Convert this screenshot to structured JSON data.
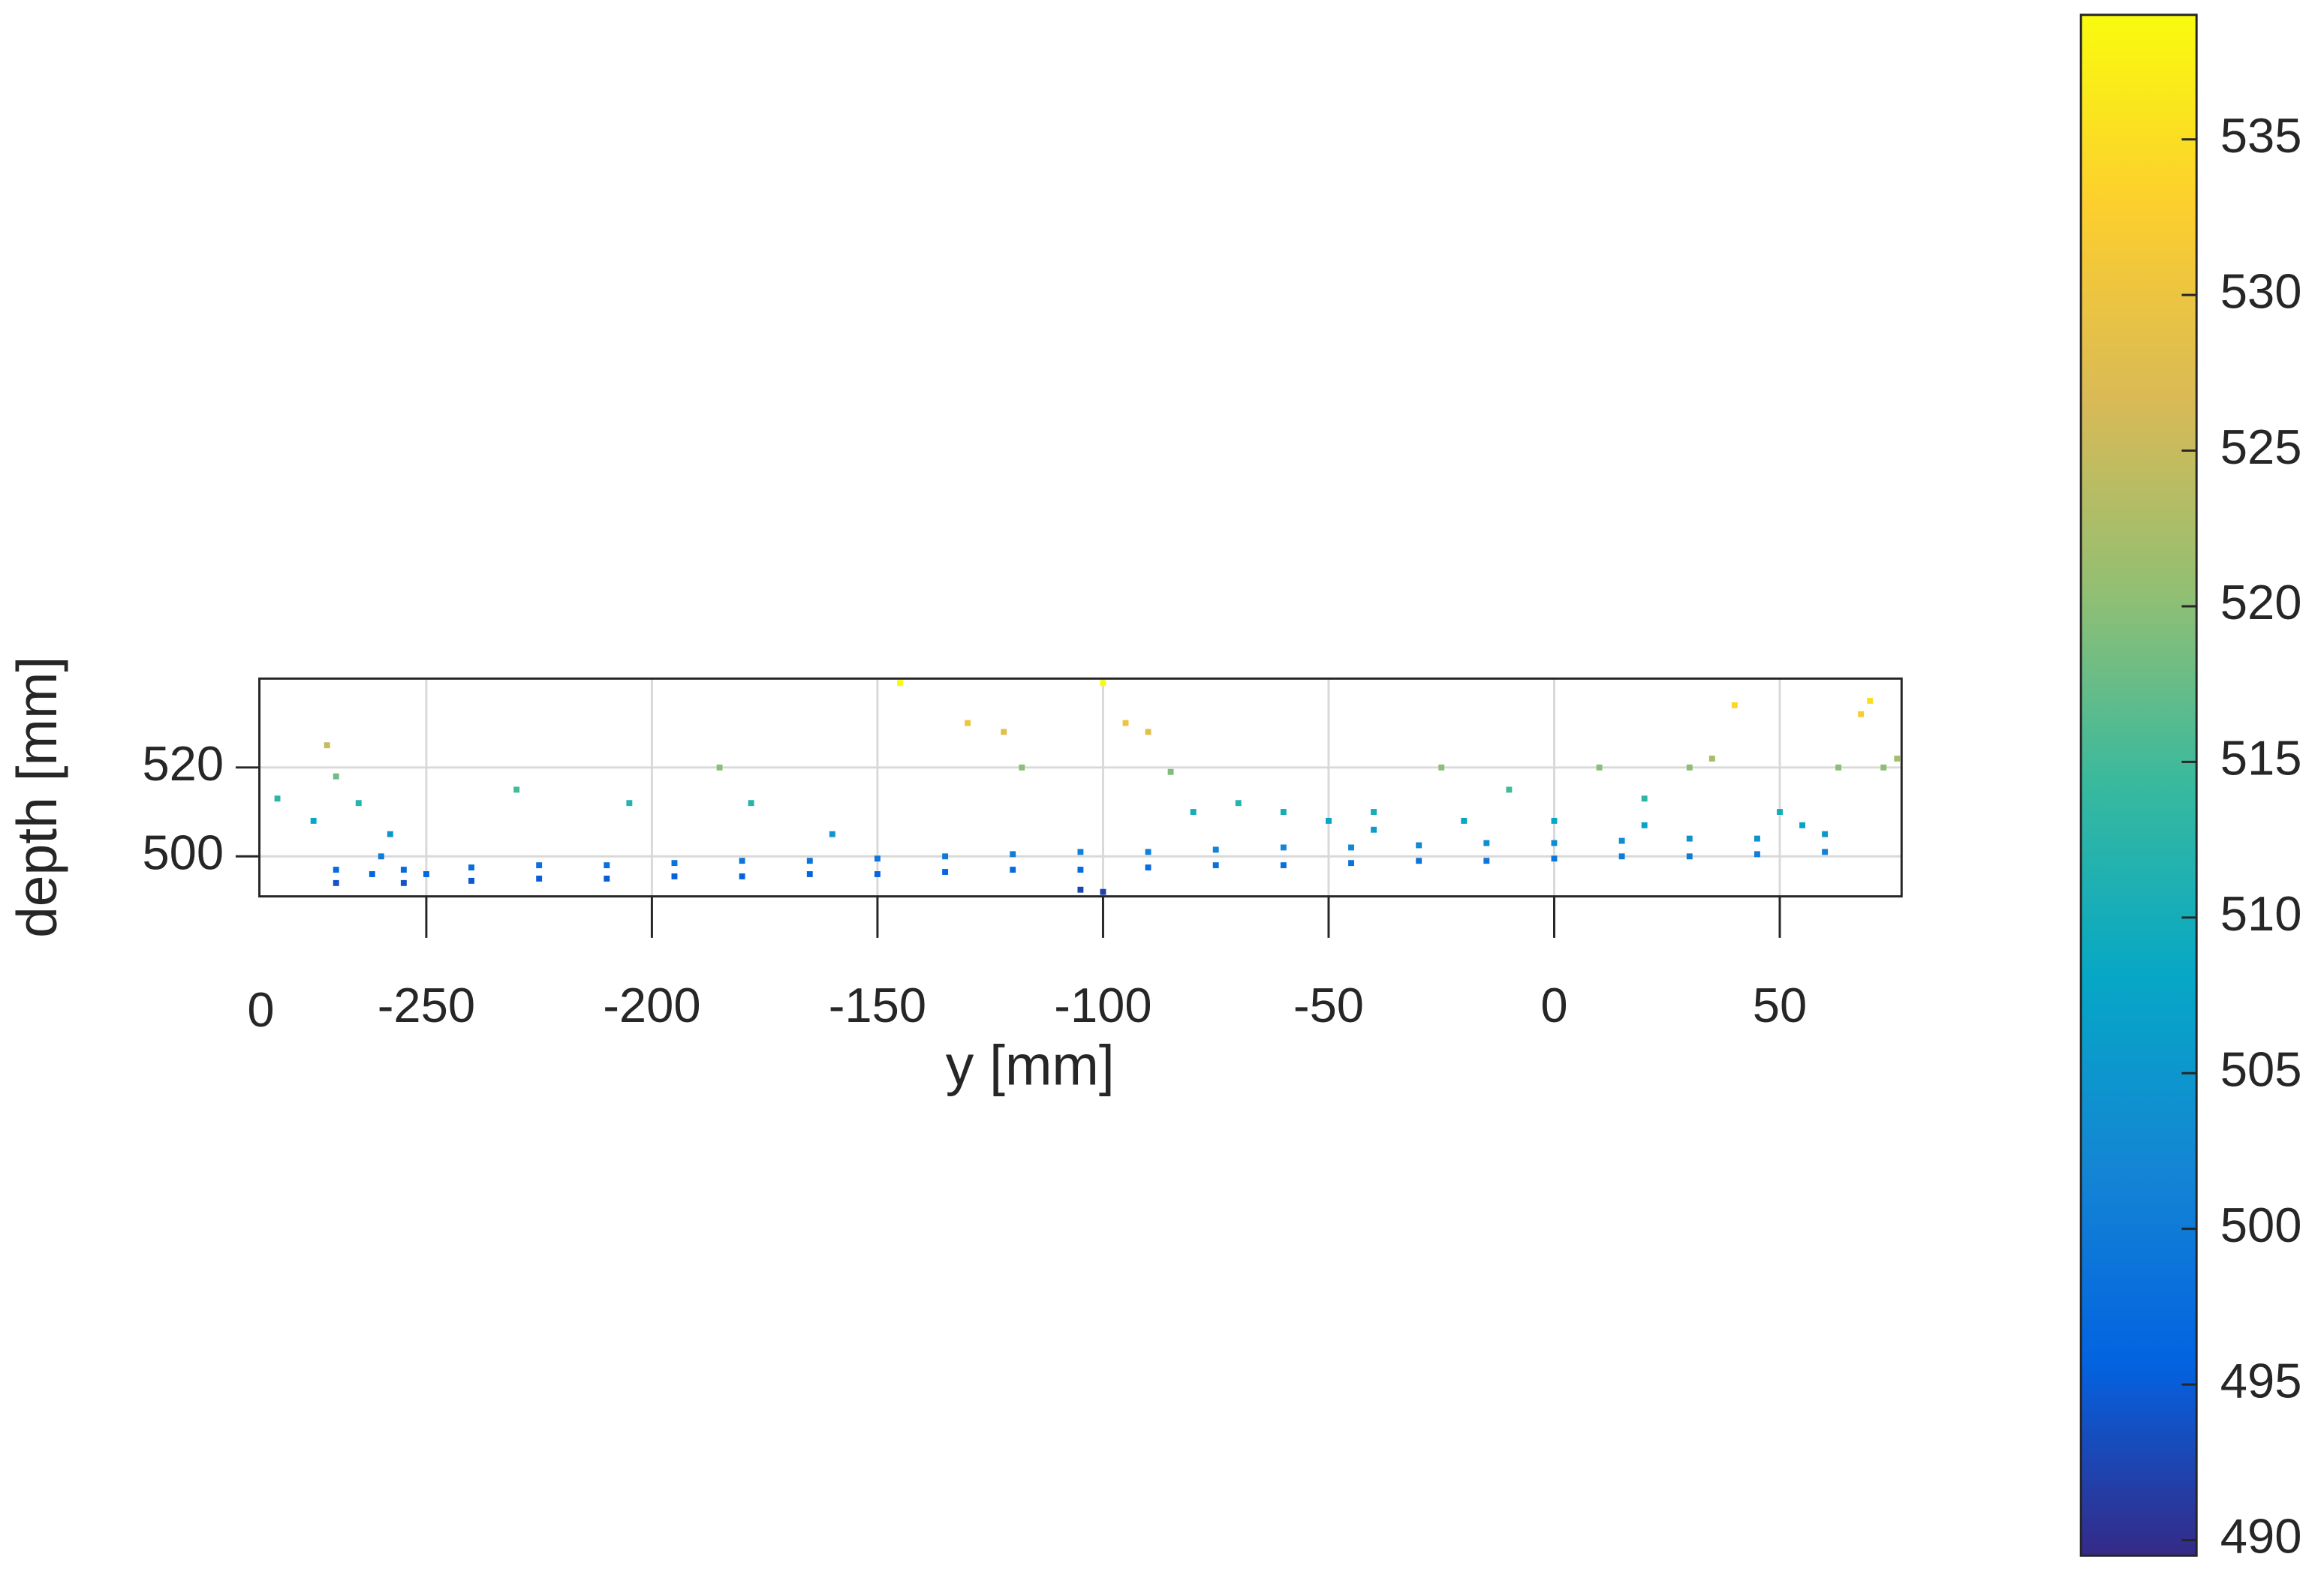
{
  "chart_data": {
    "type": "scatter",
    "xlabel": "y [mm]",
    "ylabel": "depth [mm]",
    "corner_label": "0",
    "x": [
      -270,
      -255,
      -240,
      -225,
      -210,
      -195,
      -180,
      -165,
      -150,
      -135,
      -120,
      -105,
      -90,
      -75,
      -60,
      -45,
      -30,
      -15,
      0,
      15,
      30,
      45,
      60,
      -270,
      -255,
      -240,
      -225,
      -210,
      -195,
      -180,
      -165,
      -150,
      -135,
      -120,
      -105,
      -90,
      -75,
      -60,
      -45,
      -30,
      -15,
      0,
      15,
      30,
      45,
      60,
      -283,
      -275,
      -272,
      -270,
      -265,
      -258,
      -230,
      -205,
      -185,
      -178,
      -160,
      -145,
      -130,
      -122,
      -118,
      -100,
      -95,
      -90,
      -85,
      -70,
      -60,
      -50,
      -40,
      -25,
      -10,
      10,
      20,
      -80,
      -40,
      -20,
      0,
      20,
      30,
      35,
      40,
      50,
      55,
      63,
      68,
      70,
      73,
      76,
      -260,
      -262,
      -250,
      -100,
      -105
    ],
    "values": [
      494,
      494,
      494.5,
      495,
      495,
      495.5,
      495.5,
      496,
      496,
      496.5,
      497,
      497,
      497.5,
      498,
      498,
      498.5,
      499,
      499,
      499.5,
      500,
      500,
      500.5,
      501,
      497,
      497,
      497.5,
      498,
      498,
      498.5,
      499,
      499,
      499.5,
      500,
      500.5,
      501,
      501,
      501.5,
      502,
      502,
      502.5,
      503,
      503,
      503.5,
      504,
      504,
      505,
      513,
      508,
      525,
      518,
      512,
      505,
      515,
      512,
      520,
      512,
      505,
      539,
      530,
      528,
      520,
      539,
      530,
      528,
      519,
      512,
      510,
      508,
      506,
      520,
      515,
      520,
      513,
      510,
      510,
      508,
      508,
      507,
      520,
      522,
      534,
      510,
      507,
      520,
      532,
      535,
      520,
      522,
      500,
      496,
      496,
      492,
      492.5
    ],
    "xlim": [
      -287,
      77
    ],
    "ylim": [
      491,
      540
    ],
    "xticks": [
      -250,
      -200,
      -150,
      -100,
      -50,
      0,
      50
    ],
    "yticks": [
      500,
      520
    ],
    "grid": true,
    "colorbar": {
      "clim": [
        489.5,
        539
      ],
      "ticks": [
        490,
        495,
        500,
        505,
        510,
        515,
        520,
        525,
        530,
        535
      ]
    },
    "colormap": [
      "#352a87",
      "#0363e1",
      "#1485d4",
      "#06a7c6",
      "#38b99e",
      "#92bf73",
      "#d9ba56",
      "#fcce2e",
      "#f9fb0e"
    ]
  }
}
